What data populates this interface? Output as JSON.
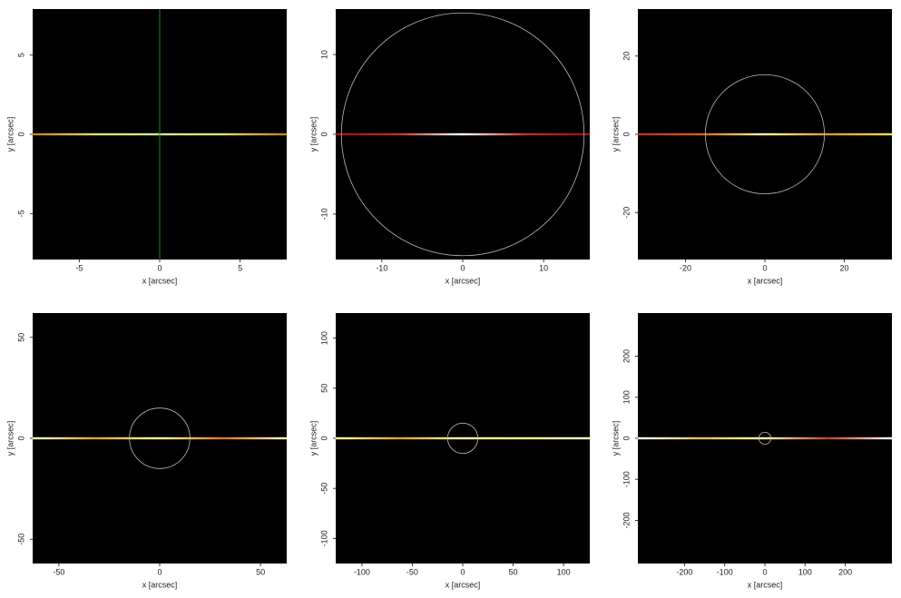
{
  "chart_data": [
    {
      "type": "image",
      "xlabel": "x [arcsec]",
      "ylabel": "y [arcsec]",
      "xlim": [
        -7.9,
        7.9
      ],
      "ylim": [
        -7.9,
        7.9
      ],
      "xticks": [
        -5,
        0,
        5
      ],
      "yticks": [
        -5,
        0,
        5
      ],
      "vline_x": 0,
      "vline_color": "#1a8a1a",
      "streak_colors": [
        "#c08020",
        "#e0e070",
        "#c8f090",
        "#e0e070",
        "#c08020"
      ]
    },
    {
      "type": "image",
      "xlabel": "x [arcsec]",
      "ylabel": "y [arcsec]",
      "xlim": [
        -15.7,
        15.7
      ],
      "ylim": [
        -15.7,
        15.7
      ],
      "xticks": [
        -10,
        0,
        10
      ],
      "yticks": [
        -10,
        0,
        10
      ],
      "circle_radius": 15,
      "circle_color": "#bbbbbb",
      "streak_colors": [
        "#a01010",
        "#c03020",
        "#ffffff",
        "#c03020",
        "#a01010"
      ]
    },
    {
      "type": "image",
      "xlabel": "x [arcsec]",
      "ylabel": "y [arcsec]",
      "xlim": [
        -32,
        32
      ],
      "ylim": [
        -32,
        32
      ],
      "xticks": [
        -20,
        0,
        20
      ],
      "yticks": [
        -20,
        0,
        20
      ],
      "circle_radius": 15,
      "circle_color": "#bbbbbb",
      "streak_colors": [
        "#c03010",
        "#d06020",
        "#ffffa0",
        "#e09030",
        "#ffe060"
      ]
    },
    {
      "type": "image",
      "xlabel": "x [arcsec]",
      "ylabel": "y [arcsec]",
      "xlim": [
        -63,
        63
      ],
      "ylim": [
        -62,
        62
      ],
      "xticks": [
        -50,
        0,
        50
      ],
      "yticks": [
        -50,
        0,
        50
      ],
      "circle_radius": 15,
      "circle_color": "#bbbbbb",
      "streak_colors": [
        "#ffffc0",
        "#e0a030",
        "#ffffa0",
        "#e07020",
        "#ffffc0"
      ]
    },
    {
      "type": "image",
      "xlabel": "x [arcsec]",
      "ylabel": "y [arcsec]",
      "xlim": [
        -126,
        126
      ],
      "ylim": [
        -125,
        125
      ],
      "xticks": [
        -100,
        -50,
        0,
        50,
        100
      ],
      "yticks": [
        -100,
        -50,
        0,
        50,
        100
      ],
      "circle_radius": 15,
      "circle_color": "#bbbbbb",
      "streak_colors": [
        "#ffffa0",
        "#e0a030",
        "#ffffa0",
        "#ffff80",
        "#ffffd0"
      ]
    },
    {
      "type": "image",
      "xlabel": "x [arcsec]",
      "ylabel": "y [arcsec]",
      "xlim": [
        -316,
        316
      ],
      "ylim": [
        -305,
        305
      ],
      "xticks": [
        -200,
        -100,
        0,
        100,
        200
      ],
      "yticks": [
        -200,
        -100,
        0,
        100,
        200
      ],
      "circle_radius": 15,
      "circle_color": "#bbbbbb",
      "streak_colors": [
        "#ffffff",
        "#e0c060",
        "#ffffa0",
        "#c04020",
        "#ffffff"
      ]
    }
  ]
}
